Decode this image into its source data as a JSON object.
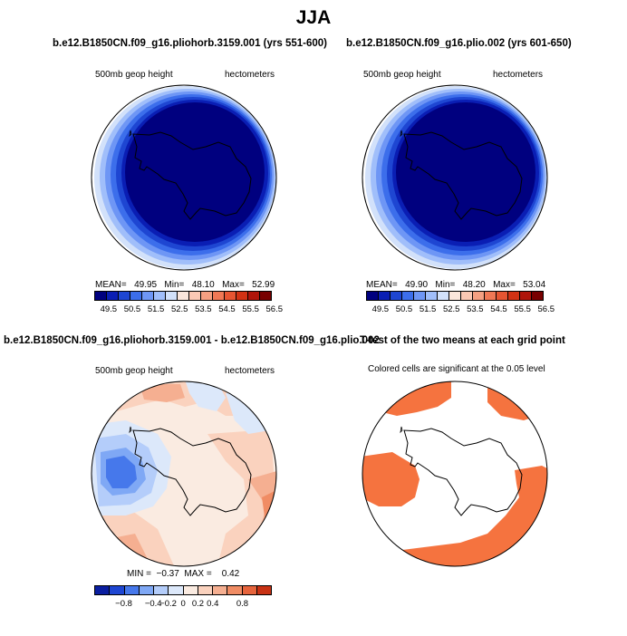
{
  "title": "JJA",
  "colors": {
    "stipple": "#F5733F",
    "coast": "#000000",
    "background": "#FFFFFF"
  },
  "panels": [
    {
      "title": "b.e12.B1850CN.f09_g16.pliohorb.3159.001 (yrs 551-600)",
      "left_label": "500mb geop height",
      "right_label": "hectometers",
      "stats": "MEAN=   49.95   Min=   48.10   Max=   52.99",
      "colorbar": [
        "49.5",
        "50.5",
        "51.5",
        "52.5",
        "53.5",
        "54.5",
        "55.5",
        "56.5"
      ]
    },
    {
      "title": "b.e12.B1850CN.f09_g16.plio.002 (yrs 601-650)",
      "left_label": "500mb geop height",
      "right_label": "hectometers",
      "stats": "MEAN=   49.90   Min=   48.20   Max=   53.04",
      "colorbar": [
        "49.5",
        "50.5",
        "51.5",
        "52.5",
        "53.5",
        "54.5",
        "55.5",
        "56.5"
      ]
    },
    {
      "title": "b.e12.B1850CN.f09_g16.pliohorb.3159.001 - b.e12.B1850CN.f09_g16.plio.002",
      "left_label": "500mb geop height",
      "right_label": "hectometers",
      "stats": "MIN =  −0.37  MAX =    0.42",
      "colorbar": [
        "−0.8",
        "−0.4",
        "−0.2",
        "0",
        "0.2",
        "0.4",
        "0.8"
      ]
    },
    {
      "title": "T-test of the two means at each grid point",
      "subtitle": "Colored cells are significant at the 0.05 level"
    }
  ],
  "abs_colorbar_colors": [
    "#00007F",
    "#0A1EB4",
    "#1E46D2",
    "#3C6EEB",
    "#6E96F5",
    "#A0BEFA",
    "#D2E1FA",
    "#FAE6DC",
    "#FAC8B4",
    "#F5A082",
    "#F07855",
    "#E65532",
    "#D23214",
    "#AF140A",
    "#780000"
  ],
  "diff_colorbar_colors": [
    "#0A1EA0",
    "#1E46D2",
    "#4678EB",
    "#7FA8F5",
    "#B4CDFA",
    "#DCE8FA",
    "#FAEBE1",
    "#FAD2BE",
    "#F5AF91",
    "#F08C64",
    "#E6643C",
    "#C83214"
  ]
}
